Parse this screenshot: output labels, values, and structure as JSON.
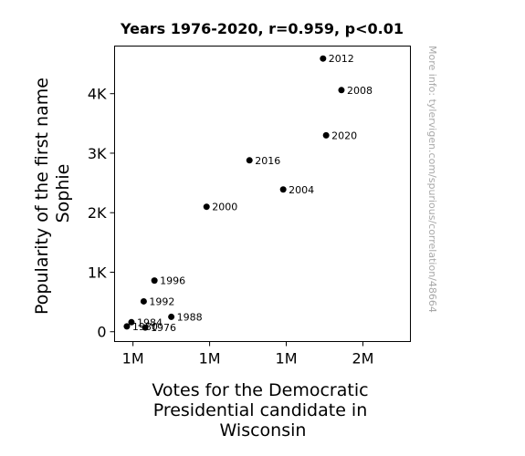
{
  "chart_data": {
    "type": "scatter",
    "title": "Years 1976-2020, r=0.959, p<0.01",
    "xlabel": [
      "Votes for the Democratic",
      "Presidential candidate in",
      "Wisconsin"
    ],
    "ylabel": [
      "Popularity of the first name",
      "Sophie"
    ],
    "x_ticks": [
      {
        "value": 1000000,
        "label": "1M"
      },
      {
        "value": 1250000,
        "label": "1M"
      },
      {
        "value": 1500000,
        "label": "1M"
      },
      {
        "value": 1750000,
        "label": "2M"
      }
    ],
    "y_ticks": [
      {
        "value": 0,
        "label": "0"
      },
      {
        "value": 1000,
        "label": "1K"
      },
      {
        "value": 2000,
        "label": "2K"
      },
      {
        "value": 3000,
        "label": "3K"
      },
      {
        "value": 4000,
        "label": "4K"
      }
    ],
    "xlim": [
      940000,
      1905000
    ],
    "ylim": [
      -165,
      4800
    ],
    "grid": false,
    "points": [
      {
        "year": "1976",
        "x": 1040000,
        "y": 70
      },
      {
        "year": "1980",
        "x": 980000,
        "y": 90
      },
      {
        "year": "1984",
        "x": 995000,
        "y": 160
      },
      {
        "year": "1988",
        "x": 1125000,
        "y": 250
      },
      {
        "year": "1992",
        "x": 1035000,
        "y": 510
      },
      {
        "year": "1996",
        "x": 1070000,
        "y": 860
      },
      {
        "year": "2000",
        "x": 1240000,
        "y": 2100
      },
      {
        "year": "2004",
        "x": 1490000,
        "y": 2390
      },
      {
        "year": "2008",
        "x": 1680000,
        "y": 4060
      },
      {
        "year": "2012",
        "x": 1620000,
        "y": 4590
      },
      {
        "year": "2016",
        "x": 1380000,
        "y": 2880
      },
      {
        "year": "2020",
        "x": 1630000,
        "y": 3300
      }
    ],
    "marker_color": "#000000"
  },
  "watermark": "More info: tylervigen.com/spurious/correlation/48664"
}
